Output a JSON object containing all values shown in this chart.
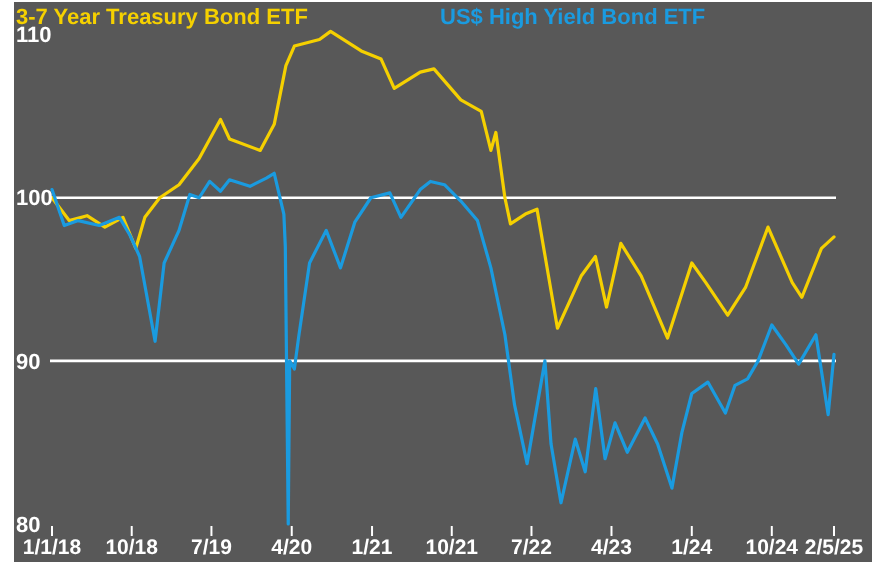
{
  "chart_data": {
    "type": "line",
    "legend": "top",
    "ylim": [
      80,
      112
    ],
    "yticks": [
      80,
      90,
      100,
      110
    ],
    "xlim": [
      "2018-01-01",
      "2025-05-02"
    ],
    "xticks": [
      {
        "value": "2018-01-01",
        "label": "1/1/18"
      },
      {
        "value": "2018-10-01",
        "label": "10/18"
      },
      {
        "value": "2019-07-01",
        "label": "7/19"
      },
      {
        "value": "2020-04-01",
        "label": "4/20"
      },
      {
        "value": "2021-01-01",
        "label": "1/21"
      },
      {
        "value": "2021-10-01",
        "label": "10/21"
      },
      {
        "value": "2022-07-01",
        "label": "7/22"
      },
      {
        "value": "2023-04-01",
        "label": "4/23"
      },
      {
        "value": "2024-01-01",
        "label": "1/24"
      },
      {
        "value": "2024-10-01",
        "label": "10/24"
      },
      {
        "value": "2025-05-02",
        "label": "2/5/25"
      }
    ],
    "ref_lines": [
      {
        "axis": "y",
        "value": 100,
        "color": "#ffffff"
      },
      {
        "axis": "y",
        "value": 90,
        "color": "#ffffff"
      }
    ],
    "series": [
      {
        "name": "3-7 Year Treasury Bond ETF",
        "color": "#f5d000",
        "x": [
          "2018-01-01",
          "2018-03-01",
          "2018-05-01",
          "2018-07-01",
          "2018-09-01",
          "2018-10-15",
          "2018-11-15",
          "2019-01-05",
          "2019-03-12",
          "2019-05-20",
          "2019-08-01",
          "2019-09-01",
          "2019-12-15",
          "2020-02-01",
          "2020-03-12",
          "2020-04-10",
          "2020-07-05",
          "2020-08-12",
          "2020-11-25",
          "2021-02-01",
          "2021-03-18",
          "2021-06-15",
          "2021-08-01",
          "2021-11-01",
          "2022-01-10",
          "2022-02-12",
          "2022-03-01",
          "2022-04-01",
          "2022-04-20",
          "2022-06-10",
          "2022-07-20",
          "2022-09-28",
          "2022-12-18",
          "2023-02-05",
          "2023-03-15",
          "2023-05-03",
          "2023-07-12",
          "2023-10-10",
          "2024-01-01",
          "2024-02-18",
          "2024-05-03",
          "2024-07-03",
          "2024-09-18",
          "2024-12-10",
          "2025-01-12",
          "2025-03-20",
          "2025-05-02"
        ],
        "values": [
          100,
          98.6,
          98.9,
          98.2,
          98.8,
          96.9,
          98.8,
          100,
          100.8,
          102.4,
          104.8,
          103.6,
          102.9,
          104.5,
          108.1,
          109.3,
          109.7,
          110.2,
          109,
          108.5,
          106.7,
          107.7,
          107.9,
          106,
          105.3,
          102.9,
          104,
          100,
          98.4,
          99,
          99.3,
          92,
          95.2,
          96.4,
          93.3,
          97.2,
          95.2,
          91.4,
          96,
          94.8,
          92.8,
          94.5,
          98.2,
          94.8,
          93.9,
          96.9,
          97.6
        ]
      },
      {
        "name": "US$ High Yield Bond ETF",
        "color": "#1a9be0",
        "x": [
          "2018-01-01",
          "2018-02-12",
          "2018-04-01",
          "2018-06-12",
          "2018-08-20",
          "2018-09-25",
          "2018-10-28",
          "2018-12-20",
          "2019-01-20",
          "2019-03-12",
          "2019-04-18",
          "2019-05-20",
          "2019-06-25",
          "2019-08-01",
          "2019-09-01",
          "2019-11-10",
          "2020-01-05",
          "2020-02-01",
          "2020-03-05",
          "2020-03-10",
          "2020-03-20",
          "2020-03-25",
          "2020-04-10",
          "2020-04-25",
          "2020-06-01",
          "2020-07-28",
          "2020-09-15",
          "2020-11-03",
          "2020-12-28",
          "2021-03-03",
          "2021-04-10",
          "2021-06-15",
          "2021-07-20",
          "2021-09-06",
          "2021-11-01",
          "2021-12-28",
          "2022-02-12",
          "2022-04-01",
          "2022-05-04",
          "2022-06-16",
          "2022-07-13",
          "2022-08-16",
          "2022-09-06",
          "2022-10-10",
          "2022-11-28",
          "2023-01-01",
          "2023-02-06",
          "2023-03-10",
          "2023-04-13",
          "2023-05-25",
          "2023-07-25",
          "2023-09-06",
          "2023-10-25",
          "2023-11-28",
          "2024-01-01",
          "2024-02-25",
          "2024-04-25",
          "2024-05-28",
          "2024-07-10",
          "2024-08-15",
          "2024-10-01",
          "2024-11-18",
          "2025-01-01",
          "2025-03-01",
          "2025-04-12",
          "2025-05-02"
        ],
        "values": [
          100.5,
          98.3,
          98.6,
          98.3,
          98.8,
          97.7,
          96.4,
          91.2,
          96,
          98,
          100.2,
          100,
          101,
          100.4,
          101.1,
          100.7,
          101.2,
          101.5,
          99,
          97,
          80,
          90,
          89.5,
          91.5,
          96,
          98,
          95.7,
          98.5,
          100,
          100.3,
          98.8,
          100.5,
          101,
          100.8,
          99.8,
          98.6,
          95.7,
          91.6,
          87.3,
          83.7,
          86.5,
          90,
          84.9,
          81.3,
          85.2,
          83.2,
          88.3,
          84,
          86.2,
          84.4,
          86.5,
          84.9,
          82.2,
          85.6,
          88,
          88.7,
          86.8,
          88.5,
          88.9,
          90,
          92.2,
          91,
          89.8,
          91.6,
          86.7,
          90.4
        ]
      }
    ]
  }
}
